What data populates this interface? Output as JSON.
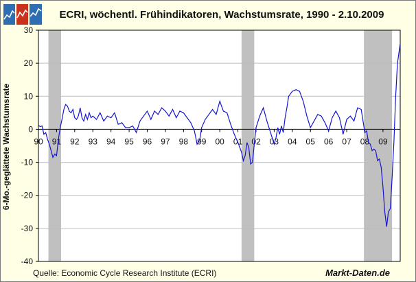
{
  "title": "ECRI, wöchentl. Frühindikatoren, Wachstumsrate, 1990 - 2.10.2009",
  "source": "Quelle: Economic Cycle Research Institute (ECRI)",
  "brand": "Markt-Daten.de",
  "colors": {
    "background": "#ffffe6",
    "plot_bg": "#ffffff",
    "series": "#1414d4",
    "recession": "#c0c0c0",
    "grid": "#bdbdbd"
  },
  "chart_data": {
    "type": "line",
    "title": "ECRI, wöchentl. Frühindikatoren, Wachstumsrate, 1990 - 2.10.2009",
    "xlabel": "",
    "ylabel": "6-Mo.-geglättete Wachstumsrate",
    "xlim": [
      1990.0,
      2009.95
    ],
    "ylim": [
      -40,
      30
    ],
    "yticks": [
      30,
      20,
      10,
      0,
      -10,
      -20,
      -30,
      -40
    ],
    "xtick_labels": [
      "90",
      "91",
      "92",
      "93",
      "94",
      "95",
      "96",
      "97",
      "98",
      "99",
      "00",
      "01",
      "02",
      "03",
      "04",
      "05",
      "06",
      "07",
      "08",
      "09"
    ],
    "grid": "horizontal",
    "recessions": [
      [
        1990.55,
        1991.25
      ],
      [
        2001.2,
        2001.9
      ],
      [
        2007.95,
        2009.5
      ]
    ],
    "series": [
      {
        "x": [
          1990.0,
          1990.1,
          1990.2,
          1990.3,
          1990.4,
          1990.5,
          1990.6,
          1990.7,
          1990.8,
          1990.9,
          1991.0,
          1991.1,
          1991.2,
          1991.3,
          1991.4,
          1991.5,
          1991.6,
          1991.7,
          1991.8,
          1991.9,
          1992.0,
          1992.1,
          1992.2,
          1992.3,
          1992.4,
          1992.5,
          1992.6,
          1992.7,
          1992.8,
          1992.9,
          1993.0,
          1993.2,
          1993.4,
          1993.6,
          1993.8,
          1994.0,
          1994.2,
          1994.4,
          1994.6,
          1994.8,
          1995.0,
          1995.2,
          1995.4,
          1995.6,
          1995.8,
          1996.0,
          1996.2,
          1996.4,
          1996.6,
          1996.8,
          1997.0,
          1997.2,
          1997.4,
          1997.6,
          1997.8,
          1998.0,
          1998.2,
          1998.4,
          1998.6,
          1998.75,
          1998.9,
          1999.0,
          1999.2,
          1999.4,
          1999.6,
          1999.8,
          2000.0,
          2000.2,
          2000.4,
          2000.6,
          2000.8,
          2001.0,
          2001.2,
          2001.3,
          2001.4,
          2001.5,
          2001.6,
          2001.7,
          2001.8,
          2001.9,
          2002.0,
          2002.2,
          2002.4,
          2002.6,
          2002.8,
          2003.0,
          2003.1,
          2003.2,
          2003.3,
          2003.4,
          2003.5,
          2003.6,
          2003.7,
          2003.8,
          2004.0,
          2004.2,
          2004.4,
          2004.6,
          2004.8,
          2005.0,
          2005.2,
          2005.4,
          2005.6,
          2005.8,
          2006.0,
          2006.2,
          2006.4,
          2006.6,
          2006.8,
          2007.0,
          2007.2,
          2007.4,
          2007.6,
          2007.8,
          2008.0,
          2008.1,
          2008.2,
          2008.3,
          2008.4,
          2008.5,
          2008.6,
          2008.7,
          2008.8,
          2008.9,
          2009.0,
          2009.1,
          2009.2,
          2009.3,
          2009.4,
          2009.5,
          2009.6,
          2009.7,
          2009.8,
          2009.9,
          2009.95
        ],
        "y": [
          1.2,
          0.8,
          1.0,
          -1.5,
          -1.0,
          -3.0,
          -4.5,
          -6.5,
          -8.5,
          -7.5,
          -8.0,
          -3.0,
          0.5,
          3.0,
          6.0,
          7.5,
          7.0,
          5.5,
          5.0,
          6.0,
          3.5,
          3.0,
          4.0,
          6.5,
          3.5,
          2.5,
          4.5,
          3.0,
          5.0,
          3.5,
          4.0,
          3.0,
          5.0,
          2.5,
          4.0,
          3.5,
          5.0,
          1.5,
          2.0,
          0.5,
          0.5,
          1.0,
          -1.0,
          2.5,
          4.0,
          5.5,
          3.0,
          5.5,
          4.5,
          6.5,
          5.5,
          4.0,
          6.0,
          3.5,
          5.5,
          5.0,
          3.5,
          2.0,
          -0.5,
          -4.5,
          -3.0,
          0.5,
          3.0,
          4.5,
          6.0,
          4.5,
          8.5,
          5.5,
          5.0,
          1.5,
          -1.5,
          -4.0,
          -7.0,
          -9.5,
          -8.0,
          -4.0,
          -5.5,
          -10.5,
          -10.0,
          -4.5,
          0.5,
          4.0,
          6.5,
          2.5,
          -1.0,
          -4.5,
          -2.5,
          0.5,
          -1.5,
          1.0,
          -1.0,
          3.5,
          6.5,
          10.0,
          11.5,
          12.0,
          11.5,
          8.5,
          4.0,
          0.5,
          2.5,
          4.5,
          4.0,
          2.0,
          -0.5,
          3.5,
          5.5,
          3.5,
          -1.5,
          3.0,
          4.0,
          2.5,
          6.5,
          6.0,
          -1.0,
          -0.5,
          -4.0,
          -4.5,
          -6.5,
          -6.0,
          -6.5,
          -9.5,
          -9.0,
          -11.5,
          -17.5,
          -25.0,
          -29.5,
          -25.0,
          -24.0,
          -15.0,
          -4.0,
          10.0,
          20.0,
          24.0,
          25.8
        ]
      }
    ]
  }
}
